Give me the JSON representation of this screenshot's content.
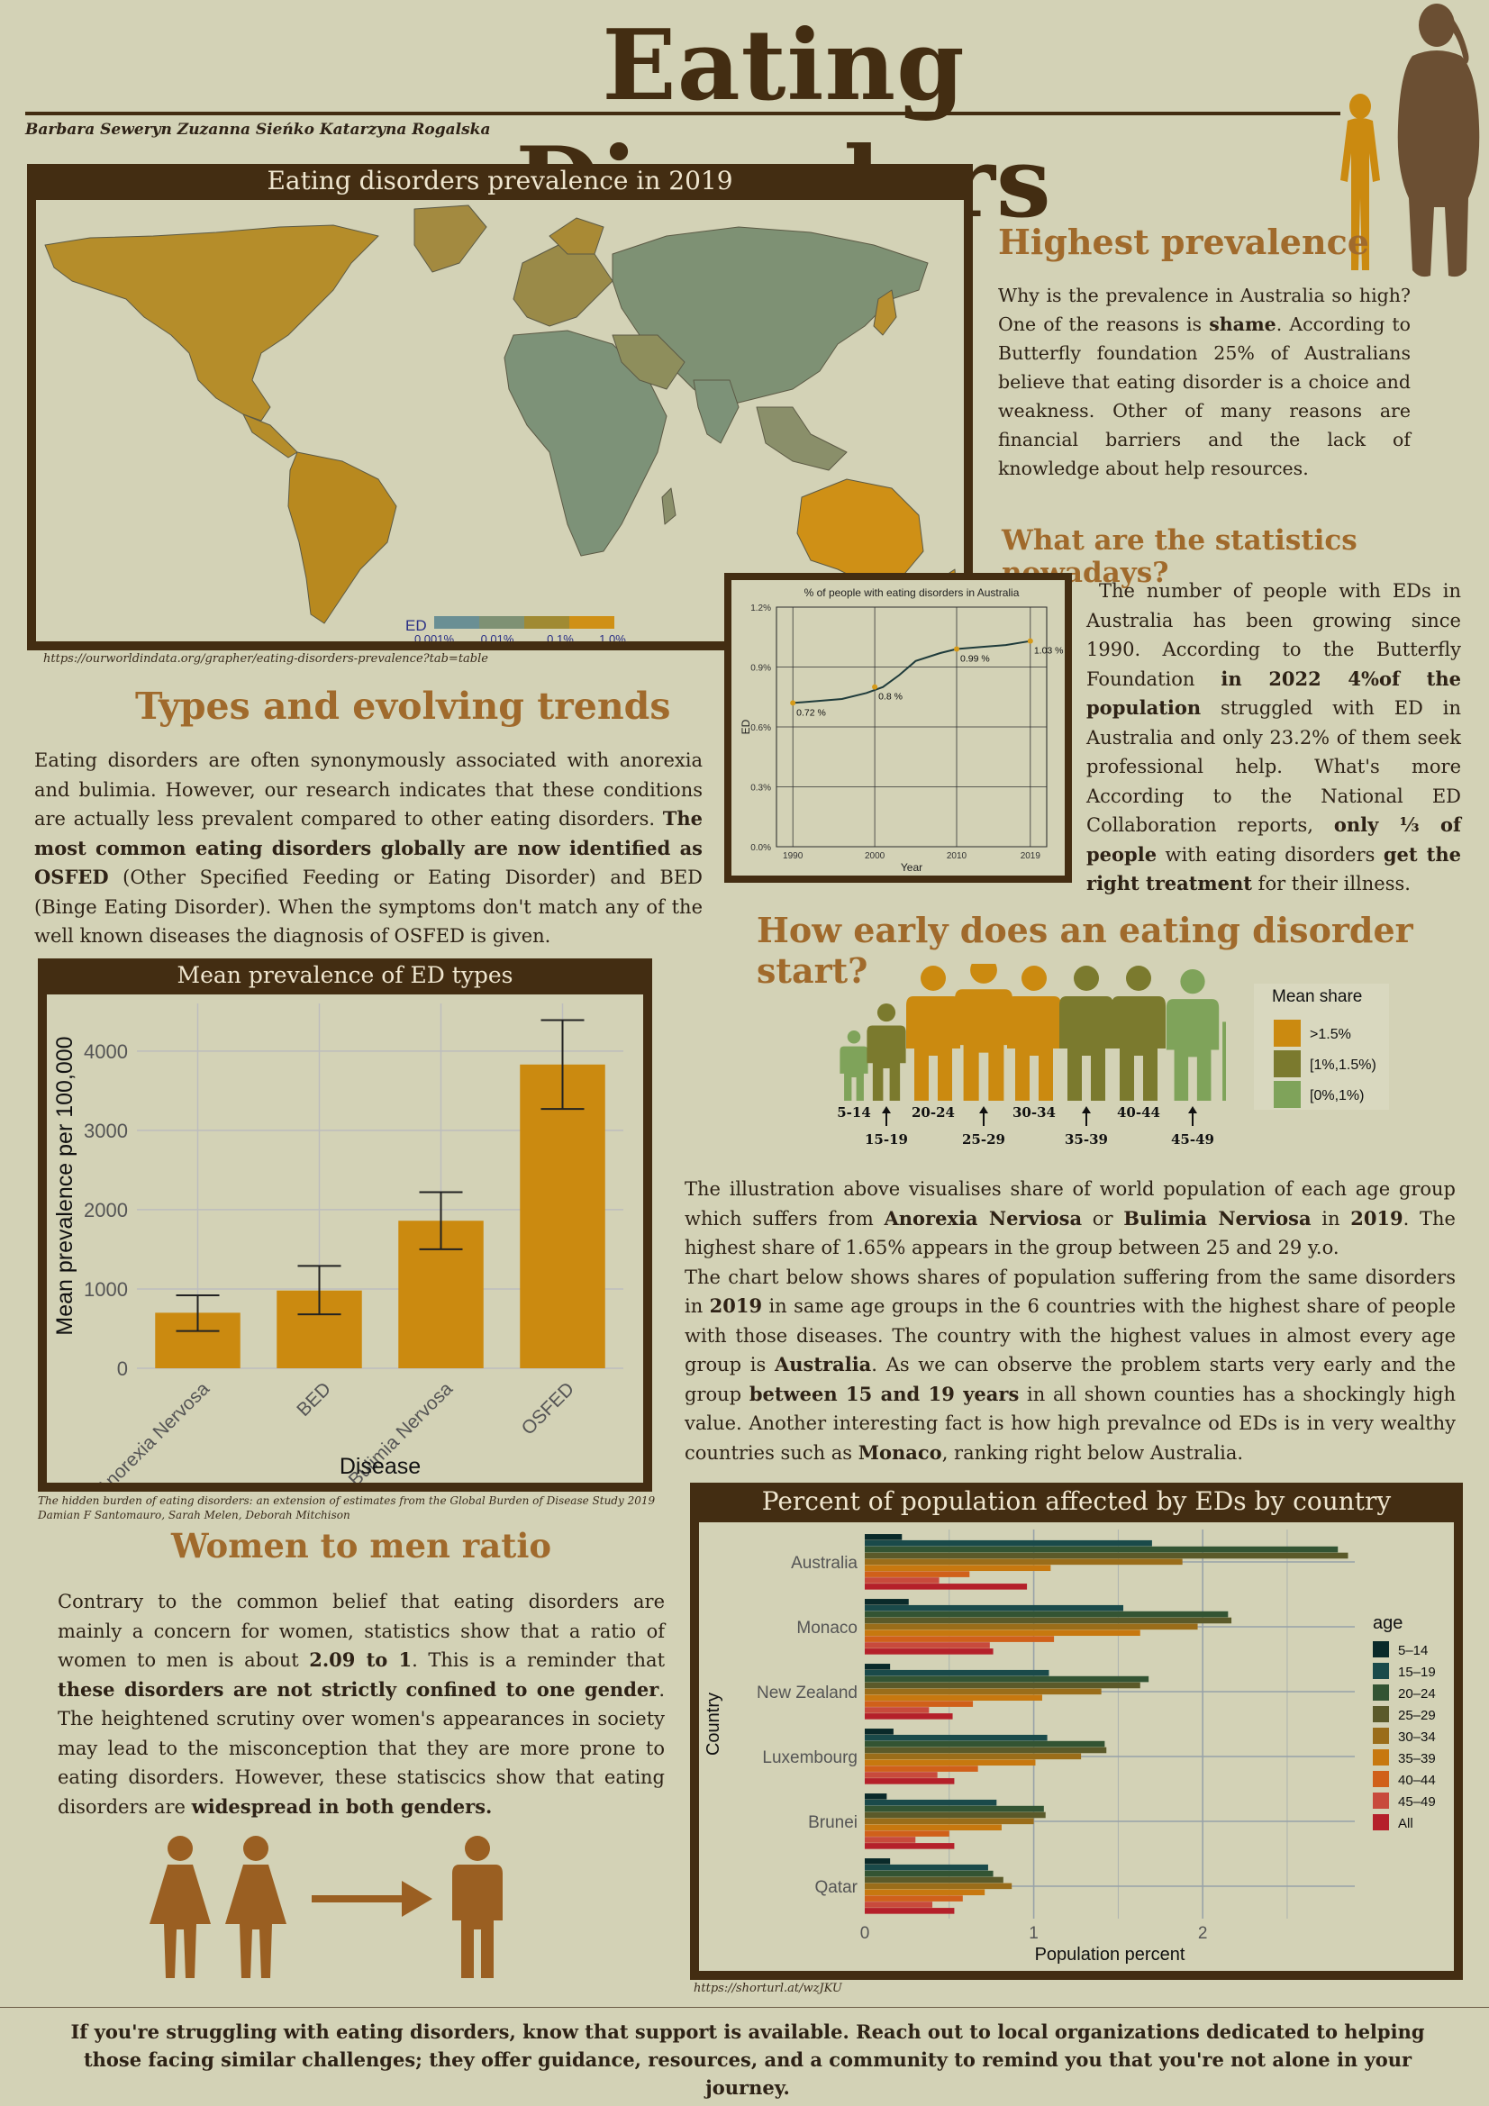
{
  "title": "Eating Disorders",
  "authors": "Barbara Seweryn  Zuzanna Sieńko  Katarzyna Rogalska",
  "map": {
    "title": "Eating disorders prevalence in 2019",
    "legend_label": "ED",
    "legend_ticks": [
      "0.001%",
      "0.01%",
      "0.1%",
      "1.0%"
    ],
    "legend_colors": [
      "#6a8f94",
      "#7e9174",
      "#a08a33",
      "#cf9016"
    ],
    "source": "https://ourworldindata.org/grapher/eating-disorders-prevalence?tab=table"
  },
  "highest_prevalence": {
    "heading": "Highest prevalence",
    "text_parts": [
      "Why is the prevalence in Australia so high? One of the reasons is ",
      "shame",
      ". According to Butterfly foundation 25% of Australians believe that eating disorder is a choice and weakness. Other of many reasons are financial barriers and the lack of knowledge about help resources."
    ]
  },
  "statistics": {
    "heading": "What are the statistics nowadays?",
    "text_parts": [
      "The number of people with EDs in Australia has been growing since 1990. According to the Butterfly Foundation ",
      "in 2022 4%of the population",
      " struggled with ED in Australia and only 23.2% of them seek professional help. What's more According to the National ED Collaboration reports, ",
      "only ⅓ of people",
      " with eating disorders ",
      "get the right treatment",
      " for their illness."
    ]
  },
  "types": {
    "heading": "Types and evolving trends",
    "text_parts": [
      "Eating disorders are often synonymously associated with anorexia and bulimia. However, our research indicates that these conditions are actually less prevalent compared to other eating disorders. ",
      "The most common eating disorders globally are now identified as OSFED",
      " (Other Specified Feeding or Eating Disorder) and BED (Binge Eating Disorder). When the symptoms don't match any of the well known diseases the diagnosis of OSFED is given."
    ]
  },
  "early": {
    "heading": "How early does an eating disorder start?",
    "legend_title": "Mean share",
    "legend_items": [
      {
        "label": ">1.5%",
        "color": "#cb8a10"
      },
      {
        "label": "[1%,1.5%)",
        "color": "#7b7a2e"
      },
      {
        "label": "[0%,1%)",
        "color": "#7fa35a"
      }
    ],
    "age_groups": [
      {
        "label": "5-14",
        "class": "[0%,1%)",
        "color": "#7fa35a"
      },
      {
        "label": "15-19",
        "class": "[1%,1.5%)",
        "color": "#7b7a2e"
      },
      {
        "label": "20-24",
        "class": ">1.5%",
        "color": "#cb8a10"
      },
      {
        "label": "25-29",
        "class": ">1.5%",
        "color": "#cb8a10"
      },
      {
        "label": "30-34",
        "class": ">1.5%",
        "color": "#cb8a10"
      },
      {
        "label": "35-39",
        "class": "[1%,1.5%)",
        "color": "#7b7a2e"
      },
      {
        "label": "40-44",
        "class": "[1%,1.5%)",
        "color": "#7b7a2e"
      },
      {
        "label": "45-49",
        "class": "[0%,1%)",
        "color": "#7fa35a"
      }
    ],
    "text_parts": [
      "The illustration above visualises share of world population of each age group which suffers from ",
      "Anorexia Nerviosa",
      " or ",
      "Bulimia Nerviosa",
      " in ",
      "2019",
      ". The highest share of 1.65% appears in the group between 25 and 29 y.o.",
      "The chart below shows shares of population suffering from the same disorders in ",
      "2019",
      " in same age groups in the 6 countries with the highest share of people with those diseases. The country with the highest values in almost every age group is ",
      "Australia",
      ". As we can observe the problem starts very early and the group ",
      "between 15 and 19 years",
      " in all shown counties has a shockingly high value. Another interesting fact is how high prevalnce od EDs is in very wealthy countries such as ",
      "Monaco",
      ", ranking right below Australia."
    ]
  },
  "women_men": {
    "heading": "Women to men ratio",
    "text_parts": [
      "Contrary to the common belief that eating disorders are mainly a concern for women, statistics show that a ratio of women to men is about ",
      "2.09 to 1",
      ". This is a reminder that ",
      "these disorders are not strictly confined to one gender",
      ". The heightened scrutiny over women's appearances in society may lead to the misconception that they are more prone to eating disorders. However, these statiscics show that eating disorders are ",
      "widespread in both genders."
    ]
  },
  "bar_source_lines": [
    "The hidden burden of eating disorders: an extension of estimates from the Global Burden of Disease Study 2019",
    "Damian F Santomauro, Sarah Melen, Deborah Mitchison"
  ],
  "country_source": "https://shorturl.at/wzJKU",
  "footer": "If you're struggling with eating disorders, know that support is available. Reach out to local organizations dedicated to helping those facing similar challenges; they offer guidance, resources, and a community to remind you that you're not alone in your journey.",
  "chart_data": [
    {
      "type": "line",
      "title": "% of people with eating disorders in Australia",
      "xlabel": "Year",
      "ylabel": "ED",
      "x": [
        1990,
        1993,
        1996,
        1999,
        2001,
        2003,
        2005,
        2008,
        2010,
        2013,
        2016,
        2019
      ],
      "y": [
        0.72,
        0.73,
        0.74,
        0.77,
        0.8,
        0.86,
        0.93,
        0.97,
        0.99,
        1.0,
        1.01,
        1.03
      ],
      "point_labels": [
        {
          "x": 1990,
          "y": 0.72,
          "text": "0.72 %"
        },
        {
          "x": 2000,
          "y": 0.8,
          "text": "0.8 %"
        },
        {
          "x": 2010,
          "y": 0.99,
          "text": "0.99 %"
        },
        {
          "x": 2019,
          "y": 1.03,
          "text": "1.03 %"
        }
      ],
      "xticks": [
        "1990",
        "2000",
        "2010",
        "2019"
      ],
      "yticks": [
        "0.0%",
        "0.3%",
        "0.6%",
        "0.9%",
        "1.2%"
      ],
      "ylim": [
        0,
        1.2
      ],
      "grid": true
    },
    {
      "type": "bar",
      "title": "Mean prevalence of ED types",
      "xlabel": "Disease",
      "ylabel": "Mean prevalence per 100,000",
      "categories": [
        "Anorexia Nervosa",
        "BED",
        "Bulimia Nervosa",
        "OSFED"
      ],
      "values": [
        700,
        980,
        1860,
        3830
      ],
      "error_low": [
        470,
        680,
        1500,
        3270
      ],
      "error_high": [
        920,
        1290,
        2220,
        4390
      ],
      "yticks": [
        0,
        1000,
        2000,
        3000,
        4000
      ],
      "ylim": [
        0,
        4600
      ],
      "grid": true
    },
    {
      "type": "bar",
      "orientation": "horizontal",
      "title": "Percent of population affected by EDs by country",
      "xlabel": "Population percent",
      "ylabel": "Country",
      "legend_title": "age",
      "legend_position": "right",
      "xticks": [
        0,
        1,
        2
      ],
      "xlim": [
        0,
        2.9
      ],
      "categories": [
        "Australia",
        "Monaco",
        "New Zealand",
        "Luxembourg",
        "Brunei",
        "Qatar"
      ],
      "series": [
        {
          "name": "5–14",
          "color": "#0a2a2a",
          "values": [
            0.22,
            0.26,
            0.15,
            0.17,
            0.13,
            0.15
          ]
        },
        {
          "name": "15–19",
          "color": "#1a4a4a",
          "values": [
            1.7,
            1.53,
            1.09,
            1.08,
            0.78,
            0.73
          ]
        },
        {
          "name": "20–24",
          "color": "#335433",
          "values": [
            2.8,
            2.15,
            1.68,
            1.42,
            1.06,
            0.76
          ]
        },
        {
          "name": "25–29",
          "color": "#5b5a2a",
          "values": [
            2.86,
            2.17,
            1.63,
            1.43,
            1.07,
            0.82
          ]
        },
        {
          "name": "30–34",
          "color": "#9a6d1a",
          "values": [
            1.88,
            1.97,
            1.4,
            1.28,
            1.0,
            0.87
          ]
        },
        {
          "name": "35–39",
          "color": "#c7780f",
          "values": [
            1.1,
            1.63,
            1.05,
            1.01,
            0.81,
            0.71
          ]
        },
        {
          "name": "40–44",
          "color": "#d0601a",
          "values": [
            0.62,
            1.12,
            0.64,
            0.67,
            0.5,
            0.58
          ]
        },
        {
          "name": "45–49",
          "color": "#c84a3c",
          "values": [
            0.44,
            0.74,
            0.38,
            0.43,
            0.3,
            0.4
          ]
        },
        {
          "name": "All",
          "color": "#b5202a",
          "values": [
            0.96,
            0.76,
            0.52,
            0.53,
            0.53,
            0.53
          ]
        }
      ],
      "grid": true
    }
  ]
}
